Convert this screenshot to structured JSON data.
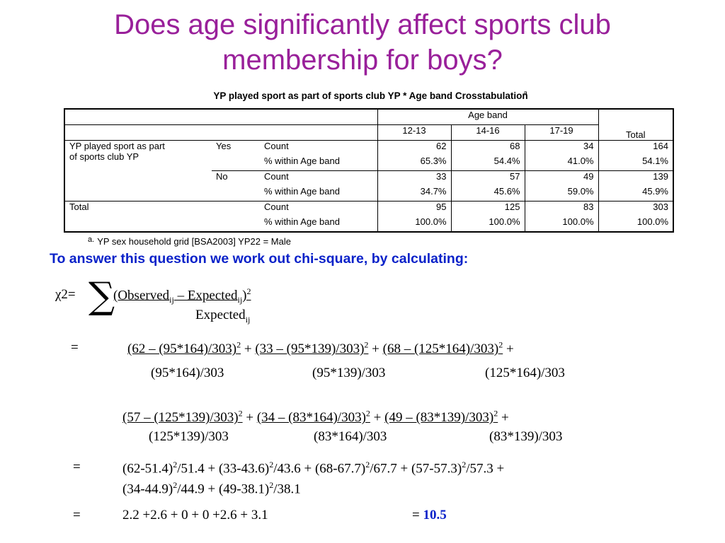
{
  "title": {
    "line1": "Does age significantly affect sports club",
    "line2": "membership for boys?"
  },
  "crosstab": {
    "title": "YP played sport as part of sports club YP * Age band Crosstabulation",
    "footnote_marker": "a",
    "age_band_label": "Age band",
    "columns": [
      "12-13",
      "14-16",
      "17-19",
      "Total"
    ],
    "row_variable_line1": "YP played sport as part",
    "row_variable_line2": "of sports club YP",
    "yes_label": "Yes",
    "no_label": "No",
    "total_label": "Total",
    "count_label": "Count",
    "pct_label": "% within Age band",
    "yes_count": [
      "62",
      "68",
      "34",
      "164"
    ],
    "yes_pct": [
      "65.3%",
      "54.4%",
      "41.0%",
      "54.1%"
    ],
    "no_count": [
      "33",
      "57",
      "49",
      "139"
    ],
    "no_pct": [
      "34.7%",
      "45.6%",
      "59.0%",
      "45.9%"
    ],
    "total_count": [
      "95",
      "125",
      "83",
      "303"
    ],
    "total_pct": [
      "100.0%",
      "100.0%",
      "100.0%",
      "100.0%"
    ],
    "footnote_label": "a.",
    "footnote_text": "YP sex household grid  [BSA2003] YP22 = Male"
  },
  "intro_text": "To answer this question we work out chi-square, by calculating:",
  "formula": {
    "chi": "χ2=",
    "sigma": "∑",
    "numerator_a": "(Observed",
    "sub_ij": "ij",
    "numerator_b": " – Expected",
    "numerator_c": ")",
    "sup_2": "2",
    "denominator": "Expected"
  },
  "equals": "=",
  "step1": {
    "t1_num": "(62 – (95*164)/303)",
    "t1_den": "(95*164)/303",
    "t2_num": "(33 – (95*139)/303)",
    "t2_den": "(95*139)/303",
    "t3_num": "(68 – (125*164)/303)",
    "t3_den": "(125*164)/303",
    "t4_num": "(57 – (125*139)/303)",
    "t4_den": "(125*139)/303",
    "t5_num": "(34 – (83*164)/303)",
    "t5_den": "(83*164)/303",
    "t6_num": "(49 – (83*139)/303)",
    "t6_den": "(83*139)/303",
    "plus": "+"
  },
  "step2": {
    "a1": "(62-51.4)",
    "a1d": "/51.4 + ",
    "a2": "(33-43.6)",
    "a2d": "/43.6 + ",
    "a3": "(68-67.7)",
    "a3d": "/67.7 + ",
    "a4": "(57-57.3)",
    "a4d": "/57.3 +",
    "b1": "(34-44.9)",
    "b1d": "/44.9 + ",
    "b2": "(49-38.1)",
    "b2d": "/38.1"
  },
  "step3": {
    "terms": "2.2 +2.6 + 0 + 0 +2.6 + 3.1",
    "result_eq": "= ",
    "result": "10.5"
  }
}
